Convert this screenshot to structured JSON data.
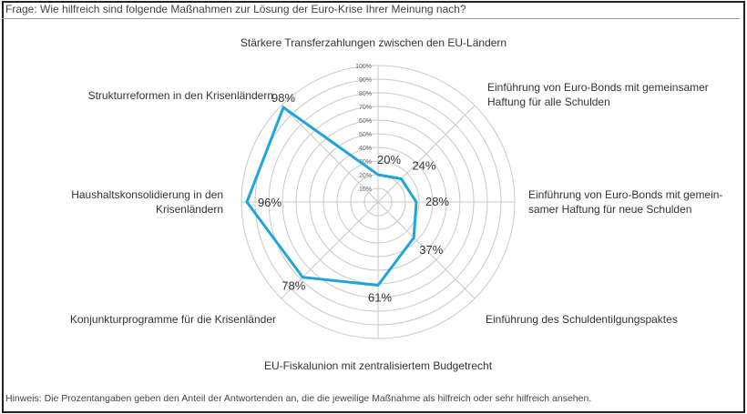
{
  "question": "Frage: Wie hilfreich sind folgende Maßnahmen zur Lösung der Euro-Krise Ihrer Meinung nach?",
  "note": "Hinweis: Die Prozentangaben geben den Anteil der Antwortenden an, die die jeweilige Maßnahme als hilfreich oder sehr hilfreich ansehen.",
  "chart_data": {
    "type": "radar",
    "categories": [
      [
        "Stärkere Transferzahlungen zwischen den EU-Ländern"
      ],
      [
        "Einführung von Euro-Bonds mit gemeinsamer",
        "Haftung für alle Schulden"
      ],
      [
        "Einführung von Euro-Bonds mit gemein-",
        "samer Haftung für neue Schulden"
      ],
      [
        "Einführung des Schuldentilgungspaktes"
      ],
      [
        "EU-Fiskalunion mit zentralisiertem Budgetrecht"
      ],
      [
        "Konjunkturprogramme für die Krisenländer"
      ],
      [
        "Haushaltskonsolidierung in den",
        "Krisenländern"
      ],
      [
        "Strukturreformen in den Krisenländern"
      ]
    ],
    "values": [
      20,
      24,
      28,
      37,
      61,
      78,
      96,
      98
    ],
    "value_labels": [
      "20%",
      "24%",
      "28%",
      "37%",
      "61%",
      "78%",
      "96%",
      "98%"
    ],
    "rlim": [
      0,
      100
    ],
    "ticks": [
      "10%",
      "20%",
      "30%",
      "40%",
      "50%",
      "60%",
      "70%",
      "80%",
      "90%",
      "100%"
    ],
    "grid": true,
    "line_color": "#1ea5dc",
    "grid_color": "#c8c8c8"
  }
}
